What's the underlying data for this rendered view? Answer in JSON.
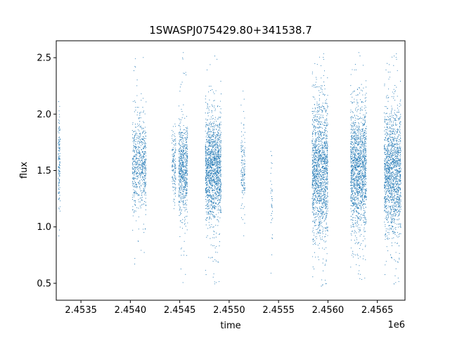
{
  "chart_data": {
    "type": "scatter",
    "title": "1SWASPJ075429.80+341538.7",
    "xlabel": "time",
    "ylabel": "flux",
    "x_offset_label": "1e6",
    "xlim": [
      2453250,
      2456780
    ],
    "ylim": [
      0.35,
      2.65
    ],
    "x_ticks": [
      {
        "value": 2453500,
        "label": "2.4535"
      },
      {
        "value": 2454000,
        "label": "2.4540"
      },
      {
        "value": 2454500,
        "label": "2.4545"
      },
      {
        "value": 2455000,
        "label": "2.4550"
      },
      {
        "value": 2455500,
        "label": "2.4555"
      },
      {
        "value": 2456000,
        "label": "2.4560"
      },
      {
        "value": 2456500,
        "label": "2.4565"
      }
    ],
    "y_ticks": [
      {
        "value": 0.5,
        "label": "0.5"
      },
      {
        "value": 1.0,
        "label": "1.0"
      },
      {
        "value": 1.5,
        "label": "1.5"
      },
      {
        "value": 2.0,
        "label": "2.0"
      },
      {
        "value": 2.5,
        "label": "2.5"
      }
    ],
    "grid": false,
    "marker_color": "#1f77b4",
    "observing_seasons": [
      {
        "x_min": 2453270,
        "x_max": 2453290,
        "y_center": 1.55,
        "y_spread": 0.22,
        "y_min": 0.78,
        "y_max": 2.15,
        "density": "sparse"
      },
      {
        "x_min": 2454020,
        "x_max": 2454160,
        "y_center": 1.55,
        "y_spread": 0.2,
        "y_min": 0.6,
        "y_max": 2.55,
        "density": "medium"
      },
      {
        "x_min": 2454420,
        "x_max": 2454460,
        "y_center": 1.55,
        "y_spread": 0.16,
        "y_min": 0.65,
        "y_max": 2.55,
        "density": "sparse"
      },
      {
        "x_min": 2454490,
        "x_max": 2454580,
        "y_center": 1.5,
        "y_spread": 0.2,
        "y_min": 0.5,
        "y_max": 2.55,
        "density": "medium"
      },
      {
        "x_min": 2454760,
        "x_max": 2454920,
        "y_center": 1.52,
        "y_spread": 0.22,
        "y_min": 0.47,
        "y_max": 2.57,
        "density": "dense"
      },
      {
        "x_min": 2455120,
        "x_max": 2455160,
        "y_center": 1.5,
        "y_spread": 0.18,
        "y_min": 0.9,
        "y_max": 2.22,
        "density": "sparse"
      },
      {
        "x_min": 2455420,
        "x_max": 2455440,
        "y_center": 1.3,
        "y_spread": 0.25,
        "y_min": 0.52,
        "y_max": 1.67,
        "density": "very-sparse"
      },
      {
        "x_min": 2455840,
        "x_max": 2456000,
        "y_center": 1.5,
        "y_spread": 0.3,
        "y_min": 0.45,
        "y_max": 2.57,
        "density": "dense"
      },
      {
        "x_min": 2456230,
        "x_max": 2456390,
        "y_center": 1.5,
        "y_spread": 0.27,
        "y_min": 0.5,
        "y_max": 2.57,
        "density": "dense"
      },
      {
        "x_min": 2456570,
        "x_max": 2456740,
        "y_center": 1.48,
        "y_spread": 0.27,
        "y_min": 0.47,
        "y_max": 2.57,
        "density": "dense"
      }
    ]
  }
}
